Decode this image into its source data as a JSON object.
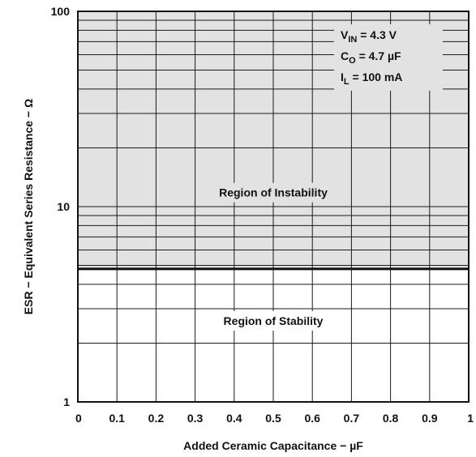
{
  "chart_data": {
    "type": "area",
    "xlabel": "Added Ceramic Capacitance − µF",
    "ylabel": "ESR − Equivalent Series Resistance − Ω",
    "xlim": [
      0,
      1
    ],
    "ylim": [
      1,
      100
    ],
    "y_scale": "log",
    "grid": true,
    "x_ticks": [
      "0",
      "0.1",
      "0.2",
      "0.3",
      "0.4",
      "0.5",
      "0.6",
      "0.7",
      "0.8",
      "0.9",
      "1"
    ],
    "y_ticks": [
      "1",
      "10",
      "100"
    ],
    "boundary": {
      "x": [
        0,
        1
      ],
      "y": [
        4.8,
        4.8
      ]
    },
    "regions": {
      "instability": "Region of Instability",
      "stability": "Region of Stability"
    },
    "conditions": {
      "vin": {
        "symbol": "V",
        "sub": "IN",
        "value": " = 4.3 V"
      },
      "co": {
        "symbol": "C",
        "sub": "O",
        "value": " = 4.7 µF"
      },
      "il": {
        "symbol": "I",
        "sub": "L",
        "value": " = 100 mA"
      }
    },
    "colors": {
      "instability_fill": "#e2e2e2",
      "grid": "#1a1a1a",
      "boundary": "#111111"
    }
  }
}
